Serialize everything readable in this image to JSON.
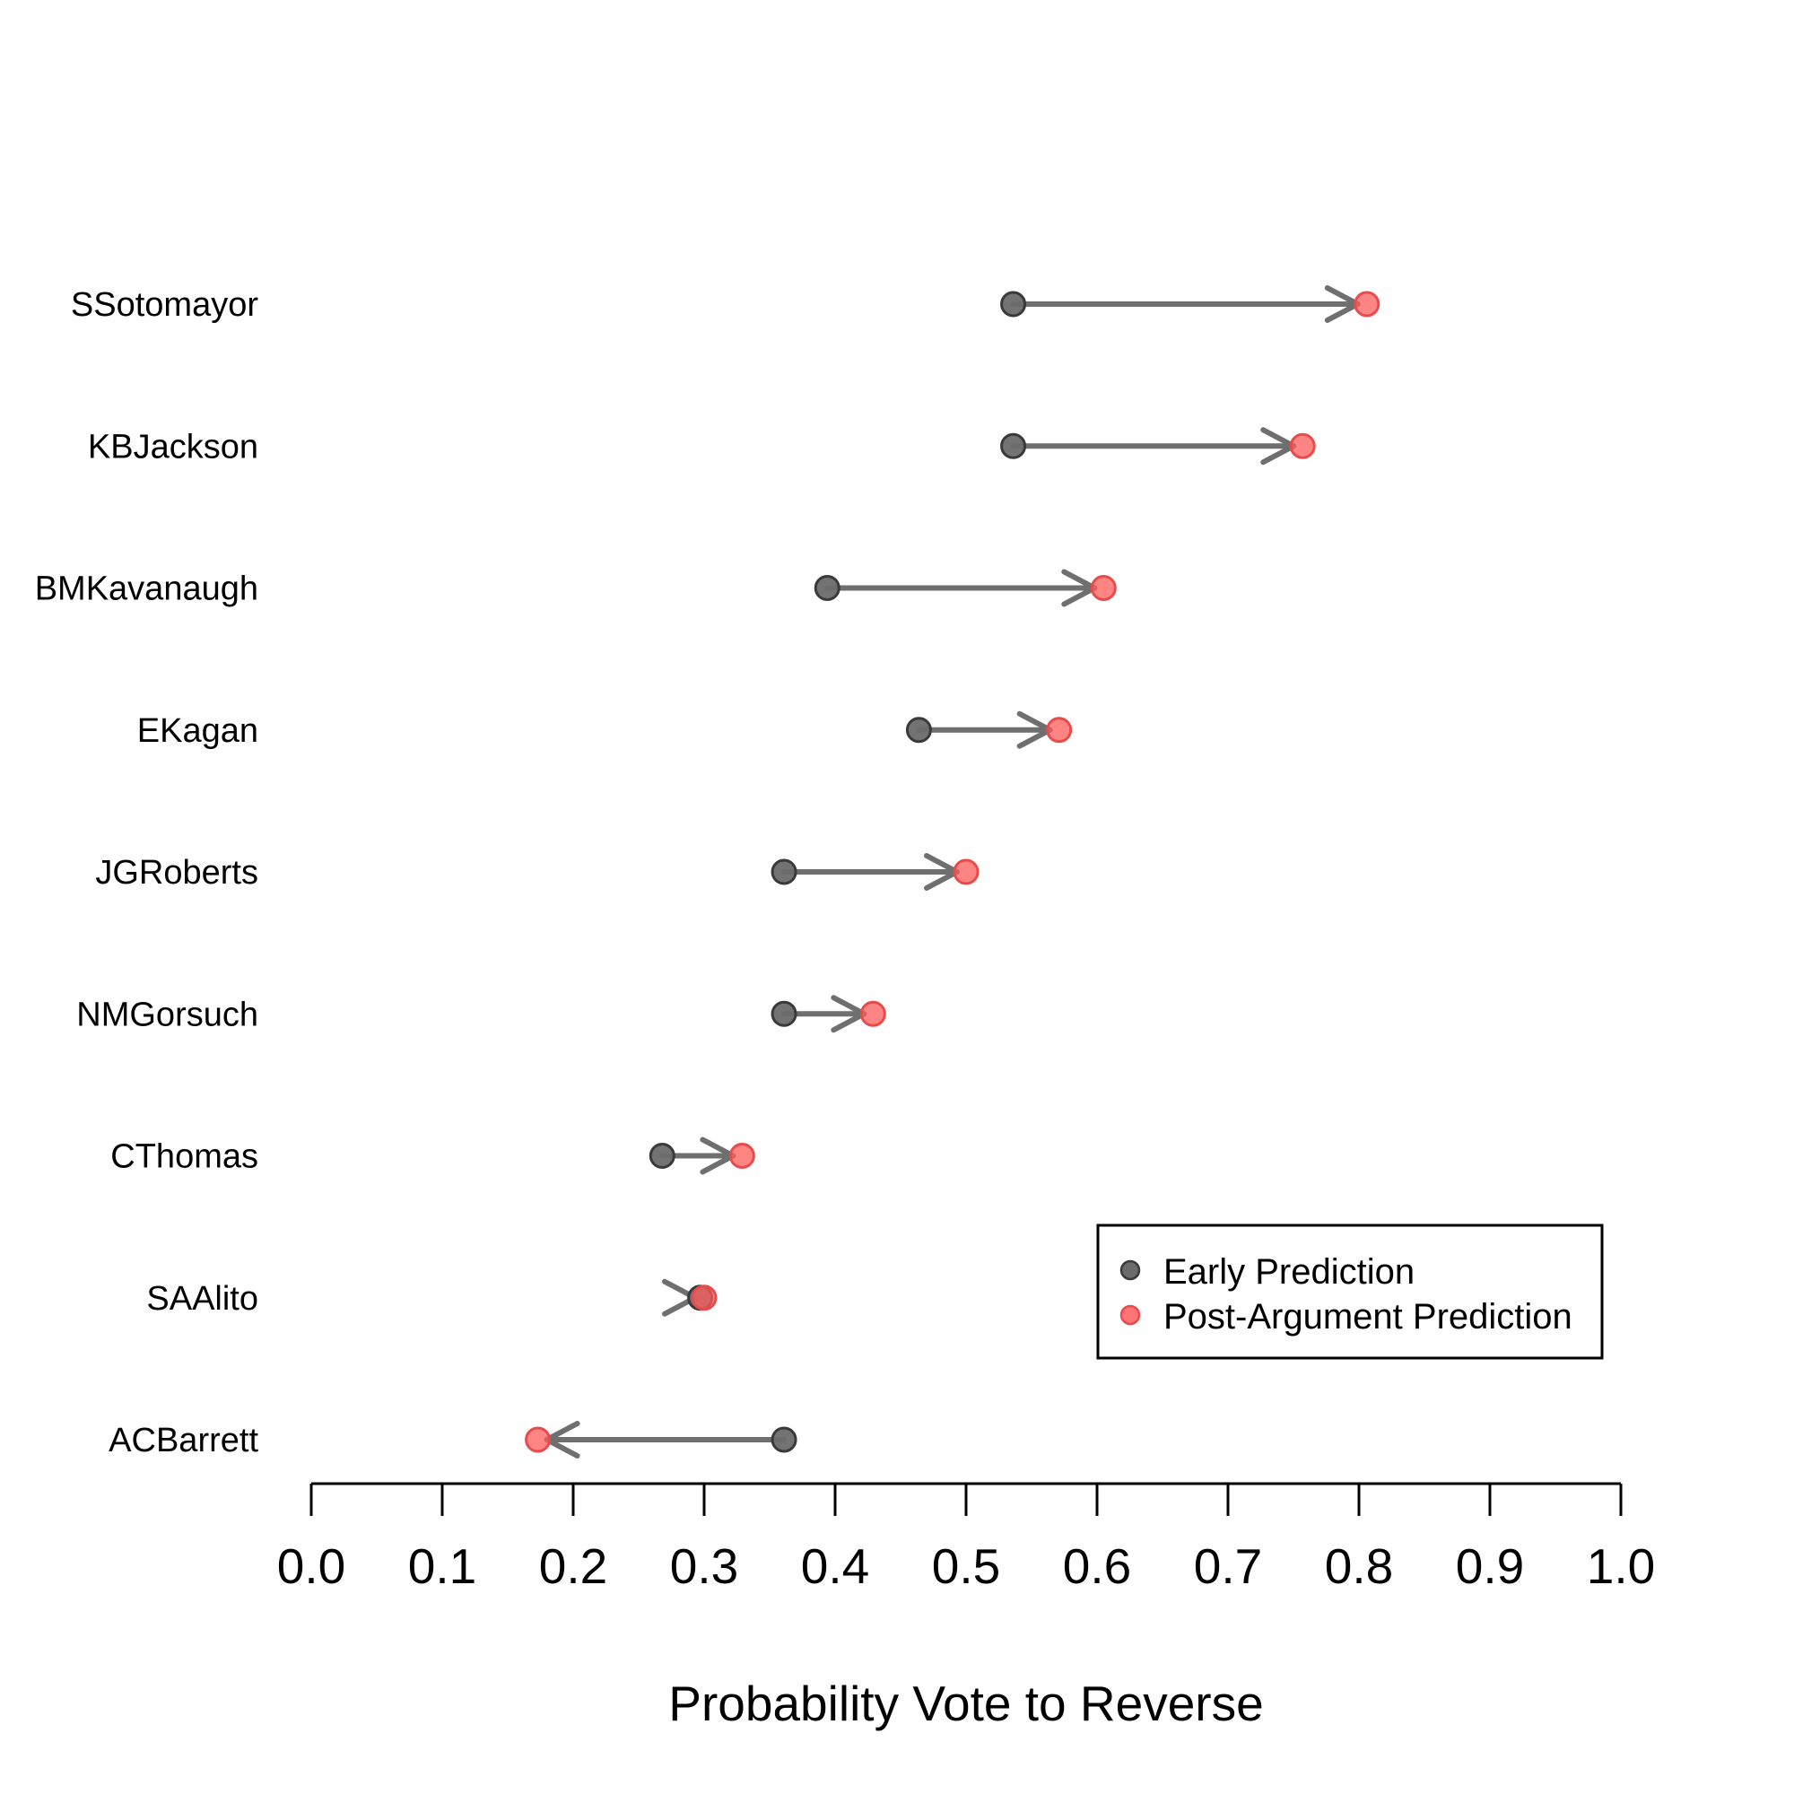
{
  "chart_data": {
    "type": "dot-arrow",
    "xlabel": "Probability Vote to Reverse",
    "xlim": [
      0,
      1
    ],
    "xticks": [
      "0.0",
      "0.1",
      "0.2",
      "0.3",
      "0.4",
      "0.5",
      "0.6",
      "0.7",
      "0.8",
      "0.9",
      "1.0"
    ],
    "categories": [
      "SSotomayor",
      "KBJackson",
      "BMKavanaugh",
      "EKagan",
      "JGRoberts",
      "NMGorsuch",
      "CThomas",
      "SAAlito",
      "ACBarrett"
    ],
    "series": [
      {
        "name": "Early Prediction",
        "values": [
          0.536,
          0.536,
          0.394,
          0.464,
          0.361,
          0.361,
          0.268,
          0.297,
          0.361
        ]
      },
      {
        "name": "Post-Argument Prediction",
        "values": [
          0.806,
          0.757,
          0.605,
          0.571,
          0.5,
          0.429,
          0.329,
          0.3,
          0.173
        ]
      }
    ],
    "legend": {
      "position": "bottom-right",
      "entries": [
        "Early Prediction",
        "Post-Argument Prediction"
      ]
    },
    "colors": {
      "early_fill": "#6b6b6b",
      "post_fill": "#ff5c5c",
      "arrow": "#6f6f6f",
      "axis": "#000000"
    },
    "grid": false
  }
}
